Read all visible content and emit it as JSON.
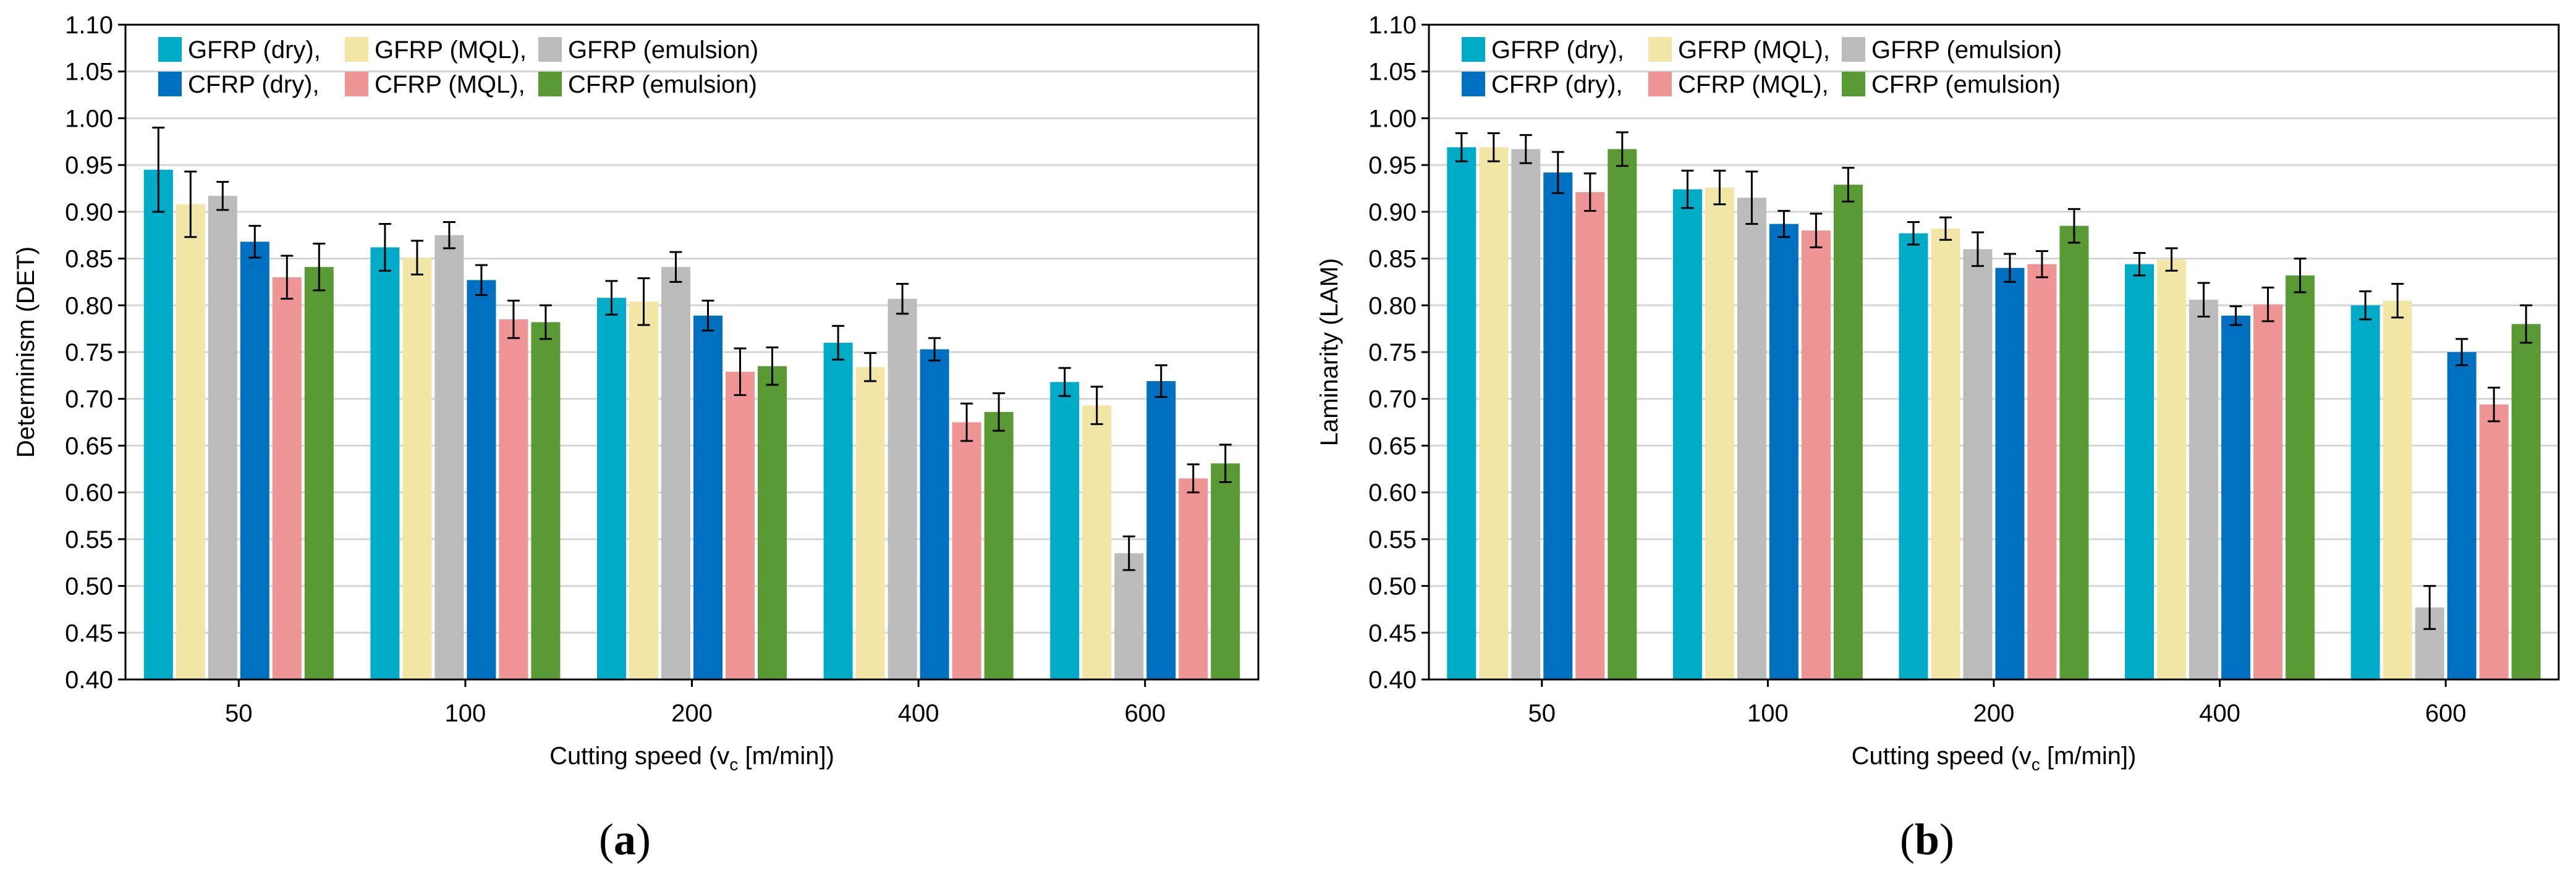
{
  "panels": [
    {
      "caption_letter": "a"
    },
    {
      "caption_letter": "b"
    }
  ],
  "chart_data": [
    {
      "type": "bar",
      "xlabel_main": "Cutting speed (v",
      "xlabel_sub": "c",
      "xlabel_tail": " [m/min])",
      "ylabel": "Determinism (DET)",
      "ylim": [
        0.4,
        1.1
      ],
      "yticks": [
        "0.40",
        "0.45",
        "0.50",
        "0.55",
        "0.60",
        "0.65",
        "0.70",
        "0.75",
        "0.80",
        "0.85",
        "0.90",
        "0.95",
        "1.00",
        "1.05",
        "1.10"
      ],
      "categories": [
        "50",
        "100",
        "200",
        "400",
        "600"
      ],
      "grid": true,
      "legend_position": "top-left",
      "series": [
        {
          "name": "GFRP (dry),",
          "color": "#00abc7",
          "values": [
            0.945,
            0.862,
            0.808,
            0.76,
            0.718
          ],
          "err": [
            0.045,
            0.025,
            0.018,
            0.018,
            0.015
          ]
        },
        {
          "name": "GFRP (MQL),",
          "color": "#f1e6a6",
          "values": [
            0.908,
            0.851,
            0.804,
            0.734,
            0.693
          ],
          "err": [
            0.035,
            0.018,
            0.025,
            0.015,
            0.02
          ]
        },
        {
          "name": "GFRP (emulsion)",
          "color": "#bbbbbb",
          "values": [
            0.917,
            0.875,
            0.841,
            0.807,
            0.535
          ],
          "err": [
            0.015,
            0.014,
            0.016,
            0.016,
            0.018
          ]
        },
        {
          "name": "CFRP (dry),",
          "color": "#0070c0",
          "values": [
            0.868,
            0.827,
            0.789,
            0.753,
            0.719
          ],
          "err": [
            0.017,
            0.016,
            0.016,
            0.012,
            0.017
          ]
        },
        {
          "name": "CFRP (MQL),",
          "color": "#ef9595",
          "values": [
            0.83,
            0.785,
            0.729,
            0.675,
            0.615
          ],
          "err": [
            0.023,
            0.02,
            0.025,
            0.02,
            0.015
          ]
        },
        {
          "name": "CFRP (emulsion)",
          "color": "#5a9a35",
          "values": [
            0.841,
            0.782,
            0.735,
            0.686,
            0.631
          ],
          "err": [
            0.025,
            0.018,
            0.02,
            0.02,
            0.02
          ]
        }
      ]
    },
    {
      "type": "bar",
      "xlabel_main": "Cutting speed (v",
      "xlabel_sub": "c",
      "xlabel_tail": " [m/min])",
      "ylabel": "Laminarity (LAM)",
      "ylim": [
        0.4,
        1.1
      ],
      "yticks": [
        "0.40",
        "0.45",
        "0.50",
        "0.55",
        "0.60",
        "0.65",
        "0.70",
        "0.75",
        "0.80",
        "0.85",
        "0.90",
        "0.95",
        "1.00",
        "1.05",
        "1.10"
      ],
      "categories": [
        "50",
        "100",
        "200",
        "400",
        "600"
      ],
      "grid": true,
      "legend_position": "top-left",
      "series": [
        {
          "name": "GFRP (dry),",
          "color": "#00abc7",
          "values": [
            0.969,
            0.924,
            0.877,
            0.844,
            0.8
          ],
          "err": [
            0.015,
            0.02,
            0.012,
            0.012,
            0.015
          ]
        },
        {
          "name": "GFRP (MQL),",
          "color": "#f1e6a6",
          "values": [
            0.969,
            0.926,
            0.882,
            0.849,
            0.805
          ],
          "err": [
            0.015,
            0.018,
            0.012,
            0.012,
            0.018
          ]
        },
        {
          "name": "GFRP (emulsion)",
          "color": "#bbbbbb",
          "values": [
            0.967,
            0.915,
            0.86,
            0.806,
            0.477
          ],
          "err": [
            0.015,
            0.028,
            0.018,
            0.018,
            0.023
          ]
        },
        {
          "name": "CFRP (dry),",
          "color": "#0070c0",
          "values": [
            0.942,
            0.887,
            0.84,
            0.789,
            0.75
          ],
          "err": [
            0.022,
            0.014,
            0.015,
            0.01,
            0.014
          ]
        },
        {
          "name": "CFRP (MQL),",
          "color": "#ef9595",
          "values": [
            0.921,
            0.88,
            0.844,
            0.801,
            0.694
          ],
          "err": [
            0.02,
            0.018,
            0.014,
            0.018,
            0.018
          ]
        },
        {
          "name": "CFRP (emulsion)",
          "color": "#5a9a35",
          "values": [
            0.967,
            0.929,
            0.885,
            0.832,
            0.78
          ],
          "err": [
            0.018,
            0.018,
            0.018,
            0.018,
            0.02
          ]
        }
      ]
    }
  ]
}
